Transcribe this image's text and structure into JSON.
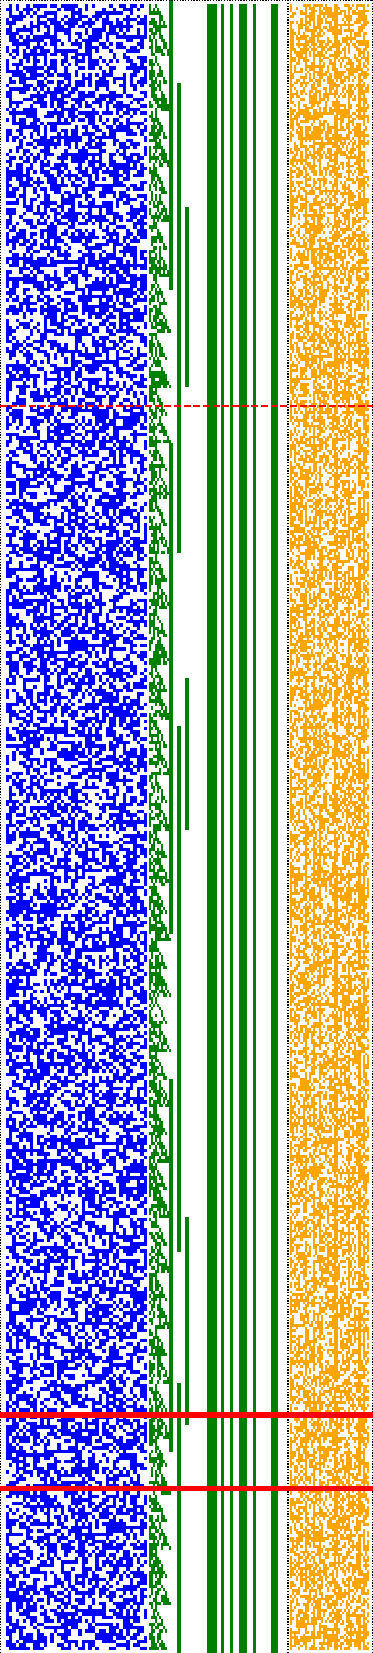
{
  "colors": {
    "background": "#ffffff",
    "blue_field": "#0000ff",
    "green_bars": "#008000",
    "orange_field": "#ffa500",
    "red_markers": "#ff0000",
    "dotted_border": "#000000"
  }
}
